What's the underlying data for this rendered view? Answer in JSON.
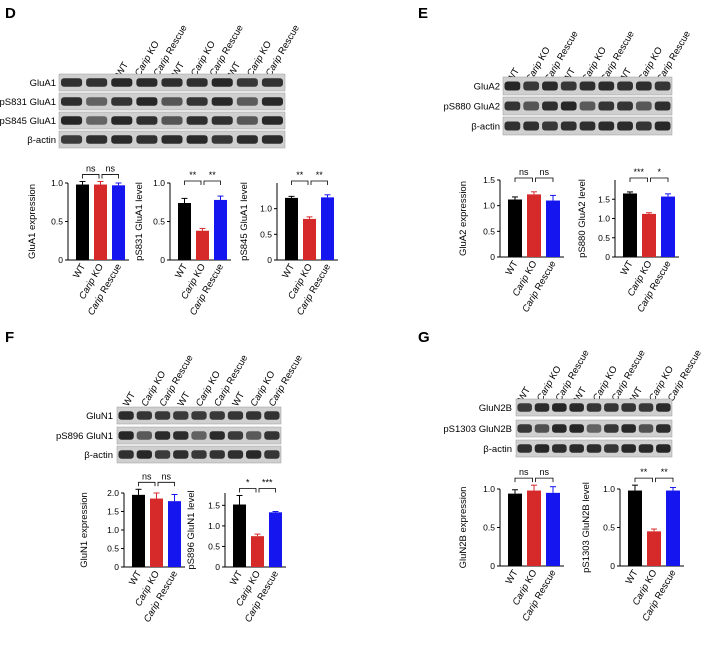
{
  "panels": [
    {
      "id": "D",
      "letter": "D",
      "lanes": [
        "WT",
        "Carip KO",
        "Carip Rescue",
        "WT",
        "Carip KO",
        "Carip Rescue",
        "WT",
        "Carip KO",
        "Carip Rescue"
      ],
      "blots": [
        "GluA1",
        "pS831 GluA1",
        "pS845 GluA1",
        "β-actin"
      ],
      "charts": [
        {
          "type": "bar",
          "ylabel": "GluA1 expression",
          "categories": [
            "WT",
            "Carip KO",
            "Carip Rescue"
          ],
          "values": [
            0.98,
            0.98,
            0.97
          ],
          "errors": [
            0.04,
            0.04,
            0.03
          ],
          "ylim": [
            0,
            1.0
          ],
          "yticks": [
            0,
            0.5,
            1.0
          ],
          "ytick_labels": [
            "0",
            "0.5",
            "1.0"
          ],
          "sig": [
            "ns",
            "ns"
          ]
        },
        {
          "type": "bar",
          "ylabel": "pS831 GluA1 level",
          "categories": [
            "WT",
            "Carip KO",
            "Carip Rescue"
          ],
          "values": [
            0.74,
            0.38,
            0.78
          ],
          "errors": [
            0.06,
            0.03,
            0.05
          ],
          "ylim": [
            0,
            1.0
          ],
          "yticks": [
            0,
            0.5,
            1.0
          ],
          "ytick_labels": [
            "0",
            "0.5",
            "1.0"
          ],
          "sig": [
            "**",
            "**"
          ]
        },
        {
          "type": "bar",
          "ylabel": "pS845 GluA1 level",
          "categories": [
            "WT",
            "Carip KO",
            "Carip Rescue"
          ],
          "values": [
            1.21,
            0.8,
            1.22
          ],
          "errors": [
            0.03,
            0.04,
            0.05
          ],
          "ylim": [
            0,
            1.5
          ],
          "yticks": [
            0,
            0.5,
            1.0
          ],
          "ytick_labels": [
            "0",
            "0.5",
            "1.0"
          ],
          "sig": [
            "**",
            "**"
          ]
        }
      ]
    },
    {
      "id": "E",
      "letter": "E",
      "lanes": [
        "WT",
        "Carip KO",
        "Carip Rescue",
        "WT",
        "Carip KO",
        "Carip Rescue",
        "WT",
        "Carip KO",
        "Carip Rescue"
      ],
      "blots": [
        "GluA2",
        "pS880 GluA2",
        "β-actin"
      ],
      "charts": [
        {
          "type": "bar",
          "ylabel": "GluA2 expression",
          "categories": [
            "WT",
            "Carip KO",
            "Carip Rescue"
          ],
          "values": [
            1.12,
            1.22,
            1.1
          ],
          "errors": [
            0.05,
            0.05,
            0.1
          ],
          "ylim": [
            0,
            1.5
          ],
          "yticks": [
            0,
            0.5,
            1.0,
            1.5
          ],
          "ytick_labels": [
            "0",
            "0.5",
            "1.0",
            "1.5"
          ],
          "sig": [
            "ns",
            "ns"
          ]
        },
        {
          "type": "bar",
          "ylabel": "pS880 GluA2 level",
          "categories": [
            "WT",
            "Carip KO",
            "Carip Rescue"
          ],
          "values": [
            1.65,
            1.12,
            1.57
          ],
          "errors": [
            0.04,
            0.03,
            0.07
          ],
          "ylim": [
            0,
            2.0
          ],
          "yticks": [
            0,
            0.5,
            1.0,
            1.5
          ],
          "ytick_labels": [
            "0",
            "0.5",
            "1.0",
            "1.5"
          ],
          "sig": [
            "***",
            "*"
          ]
        }
      ]
    },
    {
      "id": "F",
      "letter": "F",
      "lanes": [
        "WT",
        "Carip KO",
        "Carip Rescue",
        "WT",
        "Carip KO",
        "Carip Rescue",
        "WT",
        "Carip KO",
        "Carip Rescue"
      ],
      "blots": [
        "GluN1",
        "pS896 GluN1",
        "β-actin"
      ],
      "charts": [
        {
          "type": "bar",
          "ylabel": "GluN1 expression",
          "categories": [
            "WT",
            "Carip KO",
            "Carip Rescue"
          ],
          "values": [
            1.95,
            1.85,
            1.78
          ],
          "errors": [
            0.15,
            0.15,
            0.18
          ],
          "ylim": [
            0,
            2.0
          ],
          "yticks": [
            0,
            0.5,
            1.0,
            1.5,
            2.0
          ],
          "ytick_labels": [
            "0",
            "0.5",
            "1.0",
            "1.5",
            "2.0"
          ],
          "sig": [
            "ns",
            "ns"
          ]
        },
        {
          "type": "bar",
          "ylabel": "pS896 GluN1 level",
          "categories": [
            "WT",
            "Carip KO",
            "Carip Rescue"
          ],
          "values": [
            1.52,
            0.75,
            1.33
          ],
          "errors": [
            0.22,
            0.05,
            0.02
          ],
          "ylim": [
            0,
            1.8
          ],
          "yticks": [
            0,
            0.5,
            1.0,
            1.5
          ],
          "ytick_labels": [
            "0",
            "0.5",
            "1.0",
            "1.5"
          ],
          "sig": [
            "*",
            "***"
          ]
        }
      ]
    },
    {
      "id": "G",
      "letter": "G",
      "lanes": [
        "WT",
        "Carip KO",
        "Carip Rescue",
        "WT",
        "Carip KO",
        "Carip Rescue",
        "WT",
        "Carip KO",
        "Carip Rescue"
      ],
      "blots": [
        "GluN2B",
        "pS1303 GluN2B",
        "β-actin"
      ],
      "charts": [
        {
          "type": "bar",
          "ylabel": "GluN2B expression",
          "categories": [
            "WT",
            "Carip KO",
            "Carip Rescue"
          ],
          "values": [
            0.94,
            0.98,
            0.95
          ],
          "errors": [
            0.05,
            0.07,
            0.08
          ],
          "ylim": [
            0,
            1.0
          ],
          "yticks": [
            0,
            0.5,
            1.0
          ],
          "ytick_labels": [
            "0",
            "0.5",
            "1.0"
          ],
          "sig": [
            "ns",
            "ns"
          ]
        },
        {
          "type": "bar",
          "ylabel": "pS1303 GluN2B level",
          "categories": [
            "WT",
            "Carip KO",
            "Carip Rescue"
          ],
          "values": [
            0.98,
            0.45,
            0.98
          ],
          "errors": [
            0.07,
            0.03,
            0.04
          ],
          "ylim": [
            0,
            1.0
          ],
          "yticks": [
            0,
            0.5,
            1.0
          ],
          "ytick_labels": [
            "0",
            "0.5",
            "1.0"
          ],
          "sig": [
            "**",
            "**"
          ]
        }
      ]
    }
  ],
  "colors": {
    "wt": "#000000",
    "ko": "#d62a2a",
    "rescue": "#1515f0"
  }
}
